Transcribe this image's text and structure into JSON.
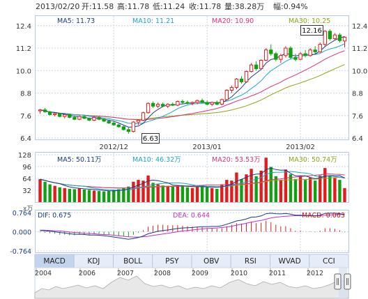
{
  "header": {
    "date": "2013/02/20",
    "open_label": "开:",
    "open": "11.58",
    "high_label": "高:",
    "high": "11.78",
    "low_label": "低:",
    "low": "11.24",
    "close_label": "收:",
    "close": "11.78",
    "volume_label": "量:",
    "volume": "38.28万",
    "change_label": "幅:",
    "change": "0.94%"
  },
  "ma_legend": [
    {
      "text": "MA5: 11.73",
      "color": "#1a3a8a"
    },
    {
      "text": "MA10: 11.21",
      "color": "#19a6cc"
    },
    {
      "text": "MA20: 10.90",
      "color": "#e0307a"
    },
    {
      "text": "MA30: 10.25",
      "color": "#8aa812"
    }
  ],
  "vol_legend": [
    {
      "text": "MA5: 50.11万",
      "color": "#1a3a8a"
    },
    {
      "text": "MA10: 46.32万",
      "color": "#19a6cc"
    },
    {
      "text": "MA20: 53.53万",
      "color": "#e0307a"
    },
    {
      "text": "MA30: 50.74万",
      "color": "#8aa812"
    }
  ],
  "macd_legend": {
    "dif": "DIF: 0.675",
    "dea": "DEA: 0.644",
    "macd": "MACD: 0.063",
    "unit": "x万"
  },
  "annotations": {
    "high_tag": "12.16",
    "low_tag": "6.63"
  },
  "tabs": [
    "MACD",
    "KDJ",
    "BOLL",
    "PSY",
    "OBV",
    "RSI",
    "WVAD",
    "CCI"
  ],
  "active_tab": "MACD",
  "timeline_years": [
    "2004",
    "2006",
    "2007",
    "2008",
    "2009",
    "2010",
    "2011",
    "2012"
  ],
  "colors": {
    "up": "#e31b1b",
    "down": "#12a012",
    "ma5": "#1a3a8a",
    "ma10": "#19a6cc",
    "ma20": "#e0307a",
    "ma30": "#8aa812",
    "grid": "#c8d4e8"
  },
  "chart_data": {
    "type": "candlestick",
    "x_ticks": [
      "2012/12",
      "2013/01",
      "2013/02"
    ],
    "price_axis": {
      "ylim": [
        6.4,
        12.8
      ],
      "ticks": [
        "12.4",
        "11.2",
        "10.0",
        "8.8",
        "7.6",
        "6.4"
      ]
    },
    "volume_axis": {
      "ylim": [
        0,
        128
      ],
      "ticks": [
        "128",
        "96",
        "64",
        "32"
      ]
    },
    "macd_axis": {
      "ylim": [
        -0.764,
        0.764
      ],
      "ticks": [
        "0.764",
        "0.000",
        "-0.764"
      ]
    },
    "candles": [
      [
        7.85,
        7.95,
        7.7,
        7.9
      ],
      [
        7.9,
        8.0,
        7.75,
        7.8
      ],
      [
        7.8,
        7.85,
        7.6,
        7.65
      ],
      [
        7.65,
        7.75,
        7.55,
        7.7
      ],
      [
        7.7,
        7.75,
        7.5,
        7.55
      ],
      [
        7.55,
        7.7,
        7.45,
        7.65
      ],
      [
        7.65,
        7.7,
        7.45,
        7.5
      ],
      [
        7.5,
        7.55,
        7.35,
        7.4
      ],
      [
        7.4,
        7.6,
        7.35,
        7.55
      ],
      [
        7.55,
        7.6,
        7.4,
        7.45
      ],
      [
        7.45,
        7.5,
        7.3,
        7.35
      ],
      [
        7.35,
        7.55,
        7.3,
        7.5
      ],
      [
        7.5,
        7.55,
        7.35,
        7.4
      ],
      [
        7.4,
        7.45,
        7.25,
        7.3
      ],
      [
        7.3,
        7.35,
        7.15,
        7.2
      ],
      [
        7.2,
        7.3,
        7.05,
        7.1
      ],
      [
        7.1,
        7.15,
        6.95,
        7.0
      ],
      [
        7.0,
        7.05,
        6.8,
        6.85
      ],
      [
        6.85,
        6.95,
        6.63,
        6.75
      ],
      [
        6.75,
        7.3,
        6.7,
        7.25
      ],
      [
        7.25,
        7.4,
        7.1,
        7.35
      ],
      [
        7.35,
        7.8,
        7.3,
        7.75
      ],
      [
        7.75,
        8.3,
        7.7,
        8.25
      ],
      [
        8.25,
        8.35,
        8.0,
        8.1
      ],
      [
        8.1,
        8.3,
        8.0,
        8.2
      ],
      [
        8.2,
        8.3,
        8.05,
        8.1
      ],
      [
        8.1,
        8.25,
        8.0,
        8.2
      ],
      [
        8.2,
        8.3,
        8.1,
        8.15
      ],
      [
        8.15,
        8.4,
        8.1,
        8.35
      ],
      [
        8.35,
        8.45,
        8.2,
        8.3
      ],
      [
        8.3,
        8.4,
        8.2,
        8.25
      ],
      [
        8.25,
        8.35,
        8.15,
        8.3
      ],
      [
        8.3,
        8.45,
        8.2,
        8.4
      ],
      [
        8.4,
        8.5,
        8.25,
        8.3
      ],
      [
        8.3,
        8.4,
        8.15,
        8.2
      ],
      [
        8.2,
        8.35,
        8.1,
        8.3
      ],
      [
        8.3,
        8.4,
        8.15,
        8.2
      ],
      [
        8.2,
        8.5,
        8.15,
        8.45
      ],
      [
        8.45,
        9.0,
        8.4,
        8.95
      ],
      [
        8.95,
        9.2,
        8.8,
        9.1
      ],
      [
        9.1,
        9.6,
        9.0,
        9.55
      ],
      [
        9.55,
        9.7,
        9.3,
        9.4
      ],
      [
        9.4,
        10.0,
        9.35,
        9.95
      ],
      [
        9.95,
        10.4,
        9.9,
        10.3
      ],
      [
        10.3,
        10.5,
        10.0,
        10.1
      ],
      [
        10.1,
        10.6,
        10.05,
        10.55
      ],
      [
        10.55,
        11.2,
        10.5,
        11.1
      ],
      [
        11.1,
        11.4,
        10.8,
        10.9
      ],
      [
        10.9,
        11.0,
        10.5,
        10.6
      ],
      [
        10.6,
        10.9,
        10.4,
        10.8
      ],
      [
        10.8,
        11.3,
        10.7,
        11.2
      ],
      [
        11.2,
        11.3,
        10.6,
        10.7
      ],
      [
        10.7,
        10.9,
        10.5,
        10.6
      ],
      [
        10.6,
        11.0,
        10.55,
        10.9
      ],
      [
        10.9,
        11.1,
        10.7,
        10.8
      ],
      [
        10.8,
        11.2,
        10.75,
        11.1
      ],
      [
        11.1,
        11.3,
        10.9,
        11.0
      ],
      [
        11.0,
        11.5,
        10.95,
        11.4
      ],
      [
        11.4,
        12.16,
        11.3,
        12.1
      ],
      [
        12.1,
        12.2,
        11.6,
        11.7
      ],
      [
        11.7,
        12.0,
        11.6,
        11.9
      ],
      [
        11.9,
        12.0,
        11.5,
        11.6
      ],
      [
        11.58,
        11.78,
        11.24,
        11.78
      ]
    ],
    "volumes": [
      62,
      55,
      48,
      44,
      40,
      38,
      36,
      35,
      37,
      34,
      33,
      31,
      30,
      29,
      30,
      32,
      35,
      38,
      42,
      55,
      60,
      58,
      72,
      52,
      48,
      45,
      44,
      42,
      46,
      44,
      40,
      38,
      42,
      45,
      40,
      38,
      36,
      48,
      60,
      58,
      80,
      62,
      75,
      90,
      70,
      85,
      120,
      95,
      70,
      60,
      88,
      75,
      62,
      70,
      60,
      66,
      58,
      72,
      92,
      70,
      65,
      60,
      38
    ],
    "dif": [
      0.05,
      0.04,
      0.02,
      0.0,
      -0.03,
      -0.05,
      -0.08,
      -0.1,
      -0.1,
      -0.11,
      -0.13,
      -0.13,
      -0.14,
      -0.16,
      -0.18,
      -0.21,
      -0.24,
      -0.27,
      -0.3,
      -0.27,
      -0.23,
      -0.17,
      -0.08,
      -0.03,
      0.02,
      0.05,
      0.07,
      0.1,
      0.13,
      0.15,
      0.16,
      0.17,
      0.19,
      0.2,
      0.2,
      0.21,
      0.21,
      0.24,
      0.3,
      0.36,
      0.43,
      0.46,
      0.51,
      0.58,
      0.59,
      0.63,
      0.72,
      0.74,
      0.72,
      0.71,
      0.73,
      0.7,
      0.66,
      0.66,
      0.64,
      0.65,
      0.63,
      0.66,
      0.73,
      0.74,
      0.74,
      0.72,
      0.68
    ],
    "dea": [
      0.06,
      0.06,
      0.05,
      0.04,
      0.03,
      0.01,
      -0.01,
      -0.03,
      -0.04,
      -0.06,
      -0.07,
      -0.08,
      -0.1,
      -0.11,
      -0.12,
      -0.14,
      -0.16,
      -0.18,
      -0.2,
      -0.21,
      -0.21,
      -0.2,
      -0.18,
      -0.15,
      -0.12,
      -0.09,
      -0.06,
      -0.03,
      0.0,
      0.03,
      0.05,
      0.07,
      0.09,
      0.11,
      0.13,
      0.14,
      0.15,
      0.17,
      0.19,
      0.22,
      0.26,
      0.3,
      0.34,
      0.38,
      0.42,
      0.45,
      0.5,
      0.55,
      0.58,
      0.6,
      0.62,
      0.63,
      0.64,
      0.64,
      0.64,
      0.64,
      0.64,
      0.64,
      0.66,
      0.67,
      0.68,
      0.69,
      0.69
    ]
  }
}
